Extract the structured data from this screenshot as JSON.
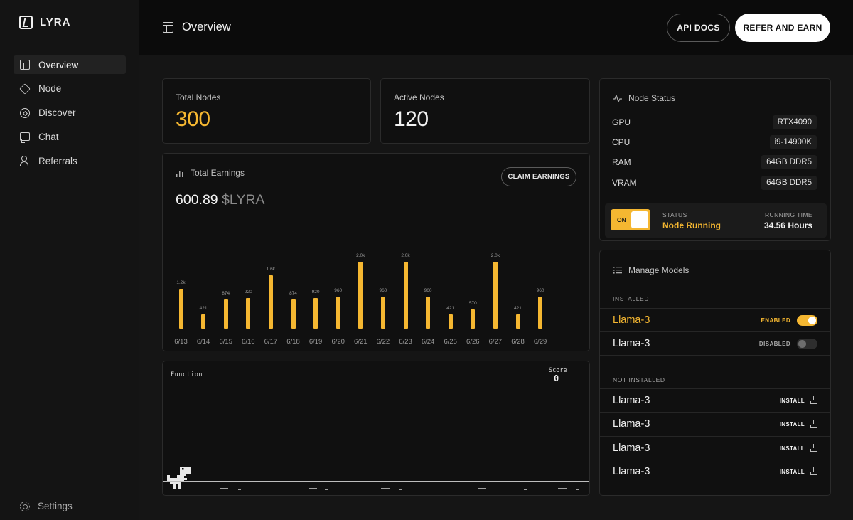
{
  "app": {
    "name": "LYRA"
  },
  "sidebar": {
    "items": [
      {
        "label": "Overview",
        "icon": "layout-icon",
        "active": true
      },
      {
        "label": "Node",
        "icon": "cube-icon"
      },
      {
        "label": "Discover",
        "icon": "compass-icon"
      },
      {
        "label": "Chat",
        "icon": "chat-icon"
      },
      {
        "label": "Referrals",
        "icon": "user-plus-icon"
      }
    ],
    "settings_label": "Settings"
  },
  "header": {
    "title": "Overview",
    "api_docs_label": "API DOCS",
    "refer_label": "REFER AND EARN"
  },
  "stats": {
    "total_nodes": {
      "label": "Total Nodes",
      "value": "300"
    },
    "active_nodes": {
      "label": "Active Nodes",
      "value": "120"
    }
  },
  "earnings": {
    "title": "Total Earnings",
    "amount": "600.89",
    "unit": "$LYRA",
    "claim_label": "CLAIM EARNINGS"
  },
  "chart_data": {
    "type": "bar",
    "categories": [
      "6/13",
      "6/14",
      "6/15",
      "6/16",
      "6/17",
      "6/18",
      "6/19",
      "6/20",
      "6/21",
      "6/22",
      "6/23",
      "6/24",
      "6/25",
      "6/26",
      "6/27",
      "6/28",
      "6/29"
    ],
    "values": [
      1200,
      421,
      874,
      920,
      1600,
      874,
      920,
      960,
      2000,
      960,
      2000,
      960,
      421,
      570,
      2000,
      421,
      960
    ],
    "data_labels": [
      "1.2k",
      "421",
      "874",
      "920",
      "1.6k",
      "874",
      "920",
      "960",
      "2.0k",
      "960",
      "2.0k",
      "960",
      "421",
      "570",
      "2.0k",
      "421",
      "960"
    ],
    "title": "Total Earnings",
    "grid": false,
    "color": "#f5b731"
  },
  "game": {
    "label": "Function",
    "score_label": "Score",
    "score": "0"
  },
  "node_status": {
    "title": "Node Status",
    "specs": [
      {
        "label": "GPU",
        "value": "RTX4090"
      },
      {
        "label": "CPU",
        "value": "i9-14900K"
      },
      {
        "label": "RAM",
        "value": "64GB DDR5"
      },
      {
        "label": "VRAM",
        "value": "64GB DDR5"
      }
    ],
    "toggle_label": "ON",
    "status_label": "STATUS",
    "status_value": "Node Running",
    "running_label": "RUNNING TIME",
    "running_value": "34.56 Hours"
  },
  "models": {
    "title": "Manage Models",
    "installed_label": "INSTALLED",
    "installed": [
      {
        "name": "Llama-3",
        "state": "ENABLED",
        "enabled": true
      },
      {
        "name": "Llama-3",
        "state": "DISABLED",
        "enabled": false
      }
    ],
    "not_installed_label": "NOT INSTALLED",
    "not_installed": [
      {
        "name": "Llama-3",
        "action": "INSTALL"
      },
      {
        "name": "Llama-3",
        "action": "INSTALL"
      },
      {
        "name": "Llama-3",
        "action": "INSTALL"
      },
      {
        "name": "Llama-3",
        "action": "INSTALL"
      }
    ]
  },
  "colors": {
    "accent": "#f5b731",
    "background": "#151515",
    "card": "#101010"
  }
}
